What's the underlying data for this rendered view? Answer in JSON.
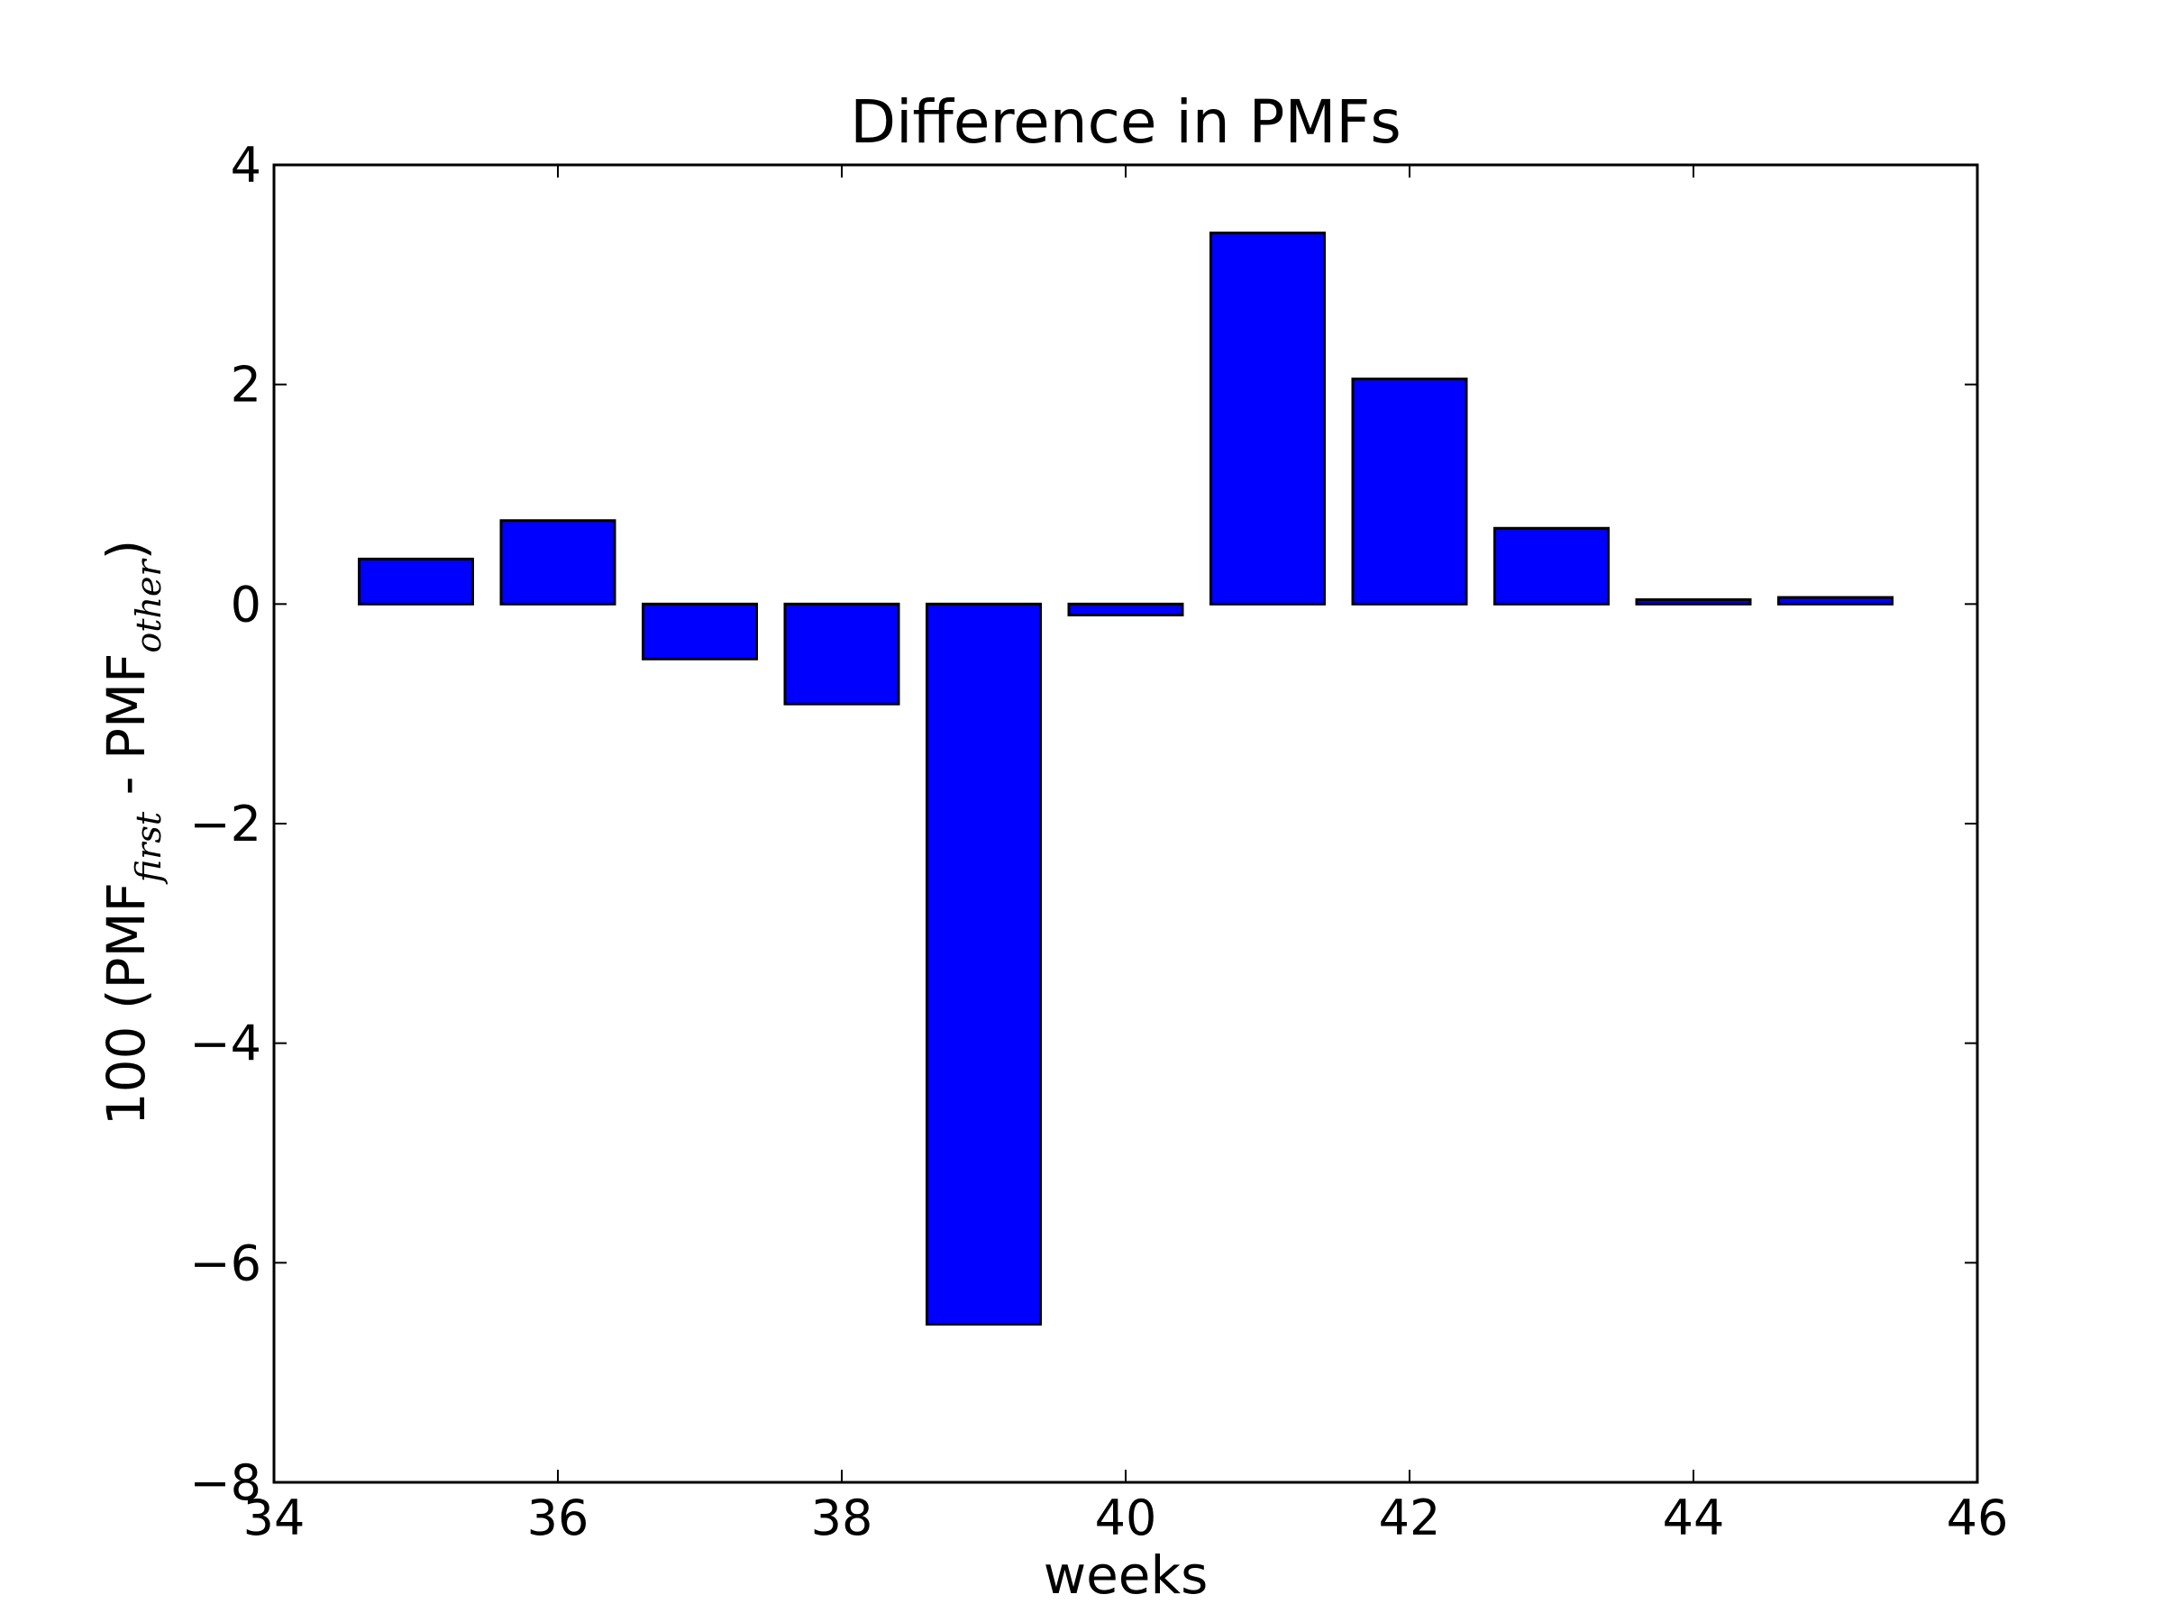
{
  "chart_data": {
    "type": "bar",
    "title": "Difference in PMFs",
    "xlabel": "weeks",
    "ylabel": {
      "prefix": "100 (PMF",
      "sub1": "first",
      "middle": " - PMF",
      "sub2": "other",
      "suffix": ")"
    },
    "xlim": [
      34,
      46
    ],
    "ylim": [
      -8,
      4
    ],
    "bar_width": 0.8,
    "x": [
      35,
      36,
      37,
      38,
      39,
      40,
      41,
      42,
      43,
      44,
      45
    ],
    "values": [
      0.41,
      0.76,
      -0.5,
      -0.91,
      -6.56,
      -0.1,
      3.38,
      2.05,
      0.69,
      0.04,
      0.06
    ],
    "xticks": [
      34,
      36,
      38,
      40,
      42,
      44,
      46
    ],
    "xtick_labels": [
      "34",
      "36",
      "38",
      "40",
      "42",
      "44",
      "46"
    ],
    "yticks": [
      -8,
      -6,
      -4,
      -2,
      0,
      2,
      4
    ],
    "ytick_labels": [
      "−8",
      "−6",
      "−4",
      "−2",
      "0",
      "2",
      "4"
    ],
    "colors": {
      "bar_fill": "#0000ff",
      "bar_edge": "#000000",
      "axes": "#000000"
    },
    "grid": false
  }
}
